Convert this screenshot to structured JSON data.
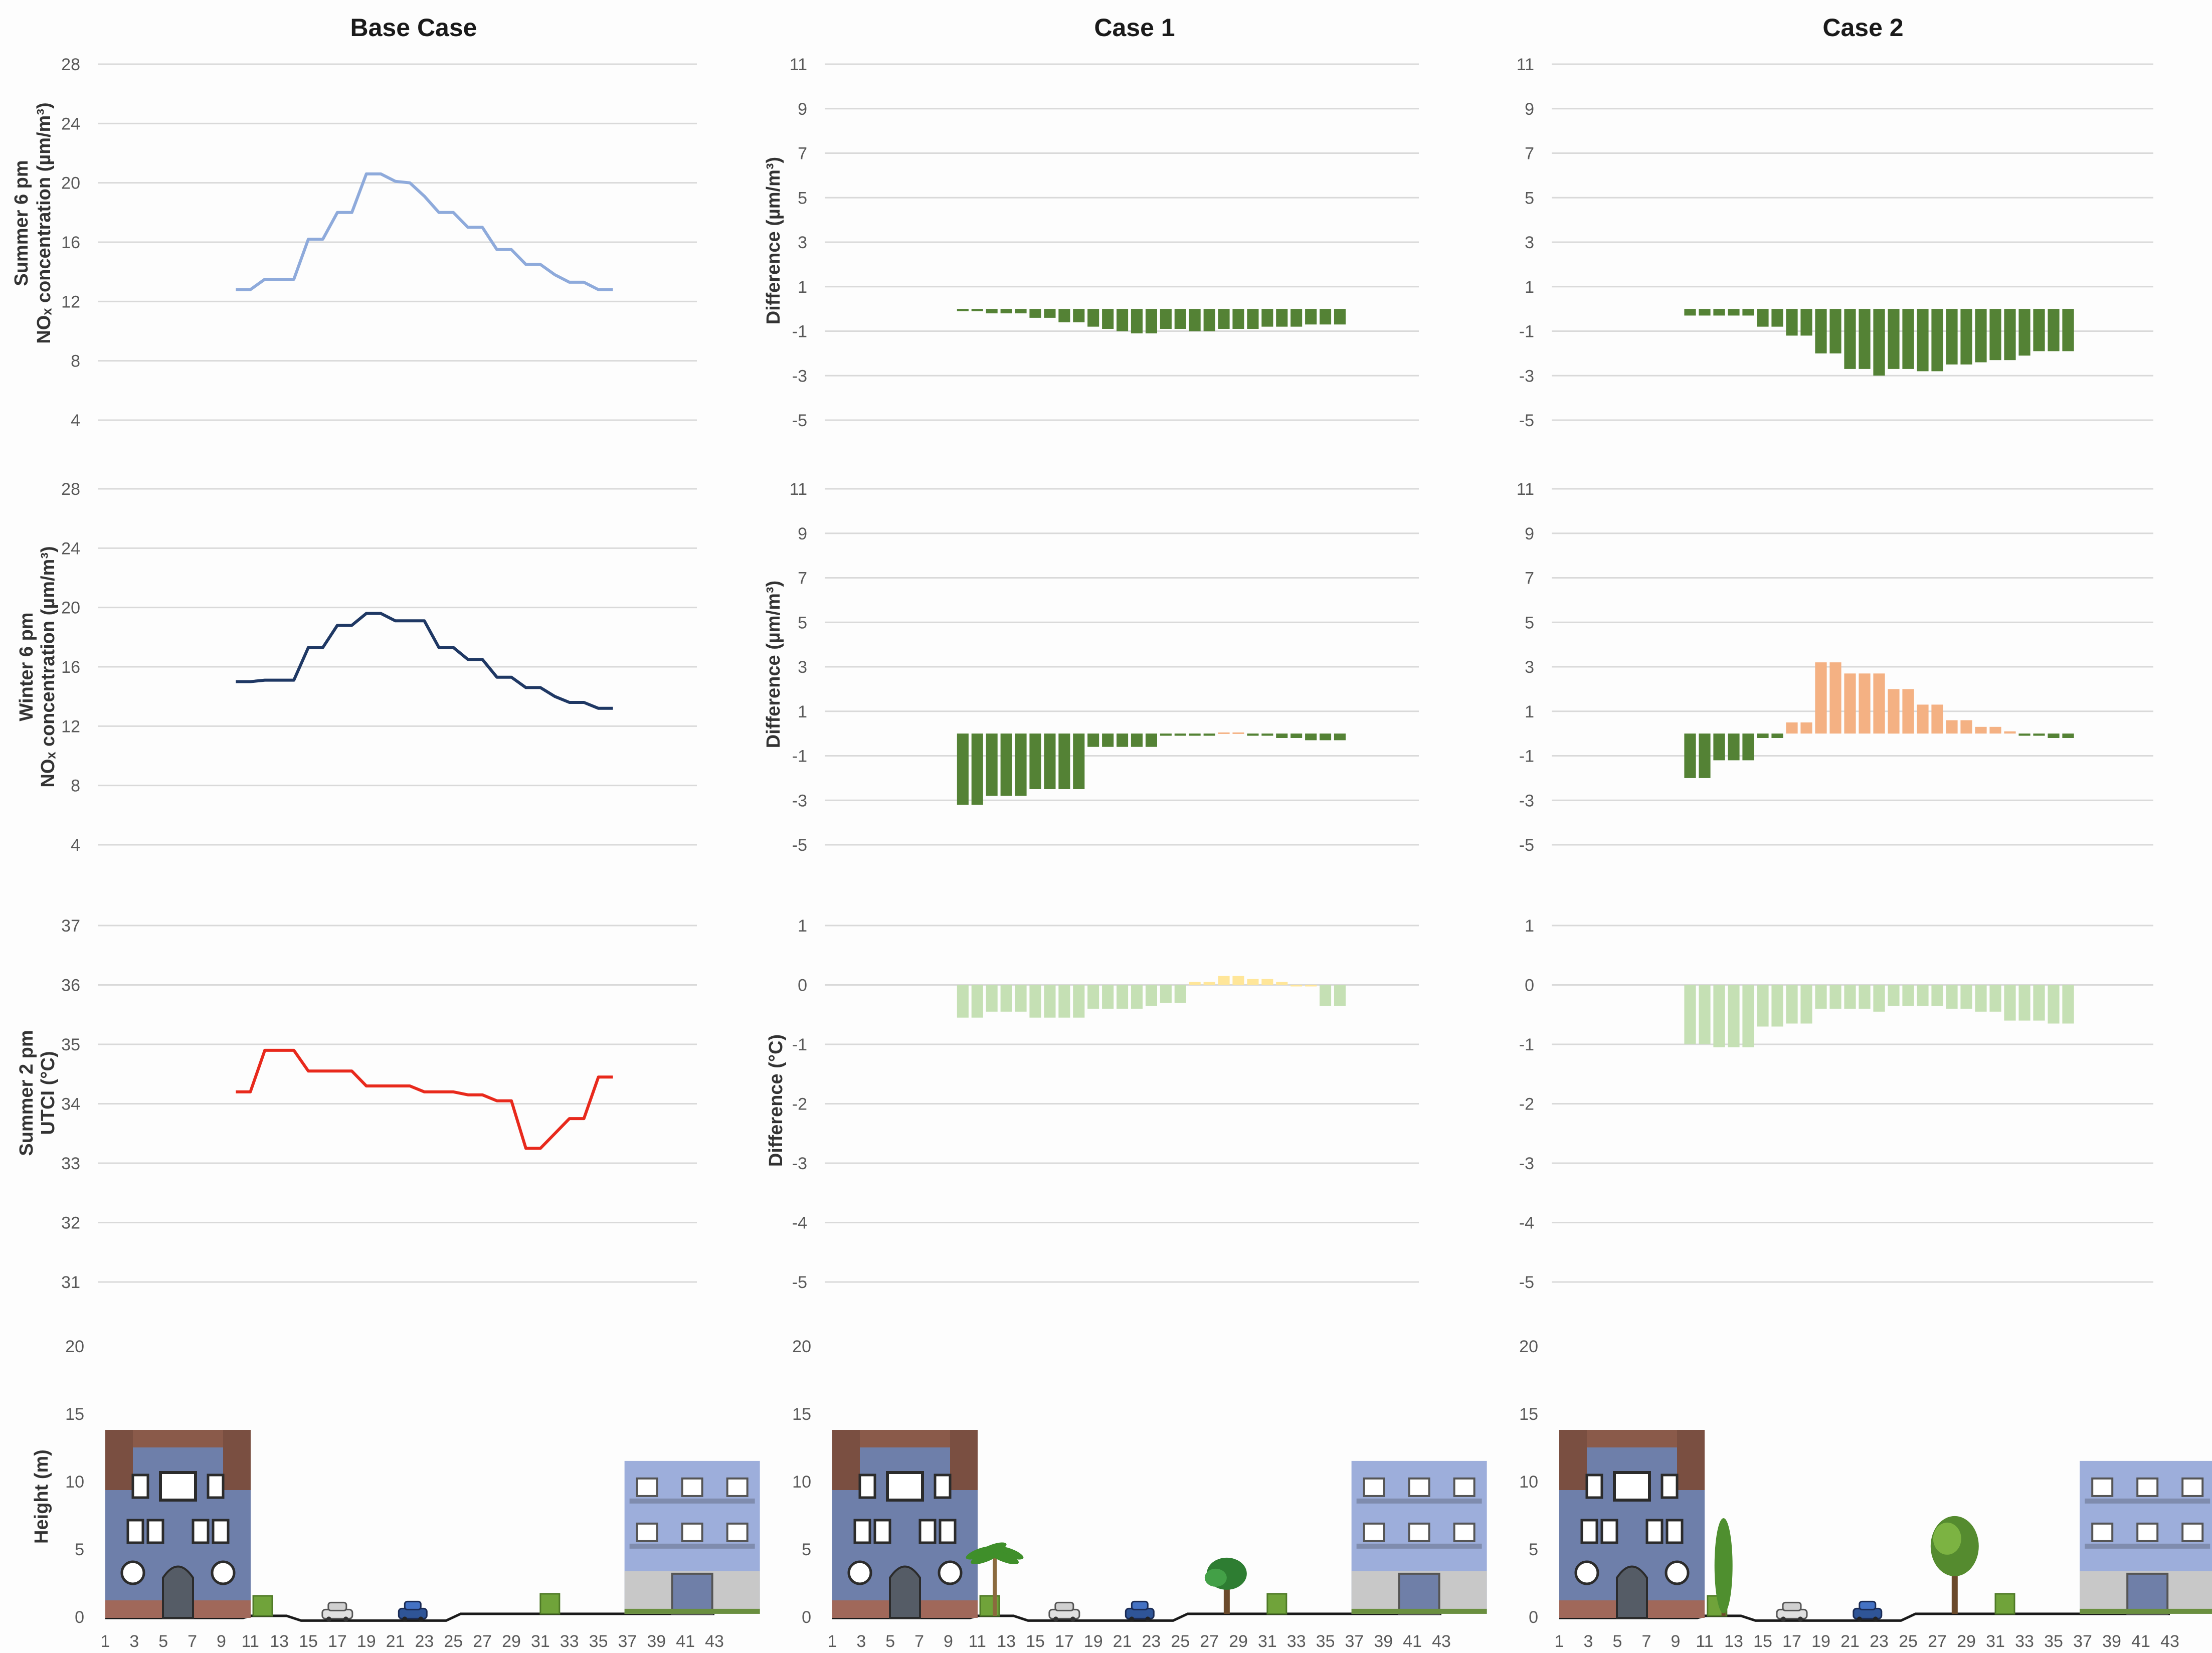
{
  "colors": {
    "summer_nox": "#8eaadb",
    "winter_nox": "#1f3864",
    "utci": "#e8291c",
    "reduction": "#548235",
    "increase_nox": "#f4b183",
    "utci_cooling": "#c5e0b4",
    "utci_warming": "#ffe699",
    "building_left": "#6e7faa",
    "building_right": "#9daedb",
    "ground": "#1a1a1a"
  },
  "columns": [
    {
      "title": "Base Case"
    },
    {
      "title": "Case 1"
    },
    {
      "title": "Case 2"
    }
  ],
  "row_labels": {
    "summer_nox": {
      "line1": "Summer 6 pm",
      "line2": "NOₓ concentration (µm/m³)"
    },
    "winter_nox": {
      "line1": "Winter 6 pm",
      "line2": "NOₓ concentration (µm/m³)"
    },
    "summer_utci": {
      "line1": "Summer 2 pm",
      "line2": "UTCI (°C)"
    },
    "difference_nox": "Difference (µm/m³)",
    "difference_temp": "Difference (°C)",
    "height": "Height (m)"
  },
  "chart_data": [
    {
      "id": "base-summer-nox",
      "type": "line",
      "column": "Base Case",
      "ylabel": "Summer 6 pm NOₓ concentration (µm/m³)",
      "ylim": [
        4,
        28
      ],
      "yticks": [
        "4",
        "8",
        "12",
        "16",
        "20",
        "24",
        "28"
      ],
      "x": [
        10,
        11,
        12,
        13,
        14,
        15,
        16,
        17,
        18,
        19,
        20,
        21,
        22,
        23,
        24,
        25,
        26,
        27,
        28,
        29,
        30,
        31,
        32,
        33,
        34,
        35,
        36
      ],
      "values": [
        12.8,
        12.8,
        13.5,
        13.5,
        13.5,
        16.2,
        16.2,
        18.0,
        18.0,
        20.6,
        20.6,
        20.1,
        20.0,
        19.1,
        18.0,
        18.0,
        17.0,
        17.0,
        15.5,
        15.5,
        14.5,
        14.5,
        13.8,
        13.3,
        13.3,
        12.8,
        12.8
      ],
      "grid": true
    },
    {
      "id": "base-winter-nox",
      "type": "line",
      "column": "Base Case",
      "ylabel": "Winter 6 pm NOₓ concentration (µm/m³)",
      "ylim": [
        4,
        28
      ],
      "yticks": [
        "4",
        "8",
        "12",
        "16",
        "20",
        "24",
        "28"
      ],
      "x": [
        10,
        11,
        12,
        13,
        14,
        15,
        16,
        17,
        18,
        19,
        20,
        21,
        22,
        23,
        24,
        25,
        26,
        27,
        28,
        29,
        30,
        31,
        32,
        33,
        34,
        35,
        36
      ],
      "values": [
        15.0,
        15.0,
        15.1,
        15.1,
        15.1,
        17.3,
        17.3,
        18.8,
        18.8,
        19.6,
        19.6,
        19.1,
        19.1,
        19.1,
        17.3,
        17.3,
        16.5,
        16.5,
        15.3,
        15.3,
        14.6,
        14.6,
        14.0,
        13.6,
        13.6,
        13.2,
        13.2
      ],
      "grid": true
    },
    {
      "id": "base-summer-utci",
      "type": "line",
      "column": "Base Case",
      "ylabel": "Summer 2 pm UTCI (°C)",
      "ylim": [
        31,
        37
      ],
      "yticks": [
        "31",
        "32",
        "33",
        "34",
        "35",
        "36",
        "37"
      ],
      "x": [
        10,
        11,
        12,
        13,
        14,
        15,
        16,
        17,
        18,
        19,
        20,
        21,
        22,
        23,
        24,
        25,
        26,
        27,
        28,
        29,
        30,
        31,
        32,
        33,
        34,
        35,
        36
      ],
      "values": [
        34.2,
        34.2,
        34.9,
        34.9,
        34.9,
        34.55,
        34.55,
        34.55,
        34.55,
        34.3,
        34.3,
        34.3,
        34.3,
        34.2,
        34.2,
        34.2,
        34.15,
        34.15,
        34.05,
        34.05,
        33.25,
        33.25,
        33.5,
        33.75,
        33.75,
        34.45,
        34.45
      ],
      "grid": true
    },
    {
      "id": "case1-summer-nox-diff",
      "type": "bar",
      "column": "Case 1",
      "ylabel": "Difference (µm/m³)",
      "ylim": [
        -5,
        11
      ],
      "yticks": [
        "-5",
        "-3",
        "-1",
        "1",
        "3",
        "5",
        "7",
        "9",
        "11"
      ],
      "x": [
        10,
        11,
        12,
        13,
        14,
        15,
        16,
        17,
        18,
        19,
        20,
        21,
        22,
        23,
        24,
        25,
        26,
        27,
        28,
        29,
        30,
        31,
        32,
        33,
        34,
        35,
        36
      ],
      "values": [
        -0.1,
        -0.1,
        -0.2,
        -0.2,
        -0.2,
        -0.4,
        -0.4,
        -0.6,
        -0.6,
        -0.8,
        -0.9,
        -1.0,
        -1.1,
        -1.1,
        -0.9,
        -0.9,
        -1.0,
        -1.0,
        -0.9,
        -0.9,
        -0.9,
        -0.8,
        -0.8,
        -0.8,
        -0.7,
        -0.7,
        -0.7
      ],
      "grid": true
    },
    {
      "id": "case2-summer-nox-diff",
      "type": "bar",
      "column": "Case 2",
      "ylabel": "Difference (µm/m³)",
      "ylim": [
        -5,
        11
      ],
      "yticks": [
        "-5",
        "-3",
        "-1",
        "1",
        "3",
        "5",
        "7",
        "9",
        "11"
      ],
      "x": [
        10,
        11,
        12,
        13,
        14,
        15,
        16,
        17,
        18,
        19,
        20,
        21,
        22,
        23,
        24,
        25,
        26,
        27,
        28,
        29,
        30,
        31,
        32,
        33,
        34,
        35,
        36
      ],
      "values": [
        -0.3,
        -0.3,
        -0.3,
        -0.3,
        -0.3,
        -0.8,
        -0.8,
        -1.2,
        -1.2,
        -2.0,
        -2.0,
        -2.7,
        -2.7,
        -3.0,
        -2.7,
        -2.7,
        -2.8,
        -2.8,
        -2.5,
        -2.5,
        -2.4,
        -2.3,
        -2.3,
        -2.1,
        -1.9,
        -1.9,
        -1.9
      ],
      "grid": true
    },
    {
      "id": "case1-winter-nox-diff",
      "type": "bar",
      "column": "Case 1",
      "ylabel": "Difference (µm/m³)",
      "ylim": [
        -5,
        11
      ],
      "yticks": [
        "-5",
        "-3",
        "-1",
        "1",
        "3",
        "5",
        "7",
        "9",
        "11"
      ],
      "x": [
        10,
        11,
        12,
        13,
        14,
        15,
        16,
        17,
        18,
        19,
        20,
        21,
        22,
        23,
        24,
        25,
        26,
        27,
        28,
        29,
        30,
        31,
        32,
        33,
        34,
        35,
        36
      ],
      "values": [
        -3.2,
        -3.2,
        -2.8,
        -2.8,
        -2.8,
        -2.5,
        -2.5,
        -2.5,
        -2.5,
        -0.6,
        -0.6,
        -0.6,
        -0.6,
        -0.6,
        -0.1,
        -0.1,
        -0.1,
        -0.1,
        0.05,
        0.05,
        -0.1,
        -0.1,
        -0.2,
        -0.2,
        -0.3,
        -0.3,
        -0.3
      ],
      "grid": true
    },
    {
      "id": "case2-winter-nox-diff",
      "type": "bar",
      "column": "Case 2",
      "ylabel": "Difference (µm/m³)",
      "ylim": [
        -5,
        11
      ],
      "yticks": [
        "-5",
        "-3",
        "-1",
        "1",
        "3",
        "5",
        "7",
        "9",
        "11"
      ],
      "x": [
        10,
        11,
        12,
        13,
        14,
        15,
        16,
        17,
        18,
        19,
        20,
        21,
        22,
        23,
        24,
        25,
        26,
        27,
        28,
        29,
        30,
        31,
        32,
        33,
        34,
        35,
        36
      ],
      "values": [
        -2.0,
        -2.0,
        -1.2,
        -1.2,
        -1.2,
        -0.2,
        -0.2,
        0.5,
        0.5,
        3.2,
        3.2,
        2.7,
        2.7,
        2.7,
        2.0,
        2.0,
        1.3,
        1.3,
        0.6,
        0.6,
        0.3,
        0.3,
        0.1,
        -0.1,
        -0.1,
        -0.2,
        -0.2
      ],
      "grid": true
    },
    {
      "id": "case1-summer-utci-diff",
      "type": "bar",
      "column": "Case 1",
      "ylabel": "Difference (°C)",
      "ylim": [
        -5,
        1
      ],
      "yticks": [
        "-5",
        "-4",
        "-3",
        "-2",
        "-1",
        "0",
        "1"
      ],
      "x": [
        10,
        11,
        12,
        13,
        14,
        15,
        16,
        17,
        18,
        19,
        20,
        21,
        22,
        23,
        24,
        25,
        26,
        27,
        28,
        29,
        30,
        31,
        32,
        33,
        34,
        35,
        36
      ],
      "values": [
        -0.55,
        -0.55,
        -0.45,
        -0.45,
        -0.45,
        -0.55,
        -0.55,
        -0.55,
        -0.55,
        -0.4,
        -0.4,
        -0.4,
        -0.4,
        -0.35,
        -0.3,
        -0.3,
        0.05,
        0.05,
        0.15,
        0.15,
        0.1,
        0.1,
        0.05,
        0.0,
        0.0,
        -0.35,
        -0.35
      ],
      "grid": true
    },
    {
      "id": "case2-summer-utci-diff",
      "type": "bar",
      "column": "Case 2",
      "ylabel": "Difference (°C)",
      "ylim": [
        -5,
        1
      ],
      "yticks": [
        "-5",
        "-4",
        "-3",
        "-2",
        "-1",
        "0",
        "1"
      ],
      "x": [
        10,
        11,
        12,
        13,
        14,
        15,
        16,
        17,
        18,
        19,
        20,
        21,
        22,
        23,
        24,
        25,
        26,
        27,
        28,
        29,
        30,
        31,
        32,
        33,
        34,
        35,
        36
      ],
      "values": [
        -1.0,
        -1.0,
        -1.05,
        -1.05,
        -1.05,
        -0.7,
        -0.7,
        -0.65,
        -0.65,
        -0.4,
        -0.4,
        -0.4,
        -0.4,
        -0.45,
        -0.35,
        -0.35,
        -0.35,
        -0.35,
        -0.4,
        -0.4,
        -0.45,
        -0.45,
        -0.6,
        -0.6,
        -0.6,
        -0.65,
        -0.65
      ],
      "grid": true
    }
  ],
  "section": {
    "ylabel": "Height (m)",
    "yticks": [
      "0",
      "5",
      "10",
      "15",
      "20"
    ],
    "xticks": [
      "1",
      "3",
      "5",
      "7",
      "9",
      "11",
      "13",
      "15",
      "17",
      "19",
      "21",
      "23",
      "25",
      "27",
      "29",
      "31",
      "33",
      "35",
      "37",
      "39",
      "41",
      "43"
    ]
  }
}
